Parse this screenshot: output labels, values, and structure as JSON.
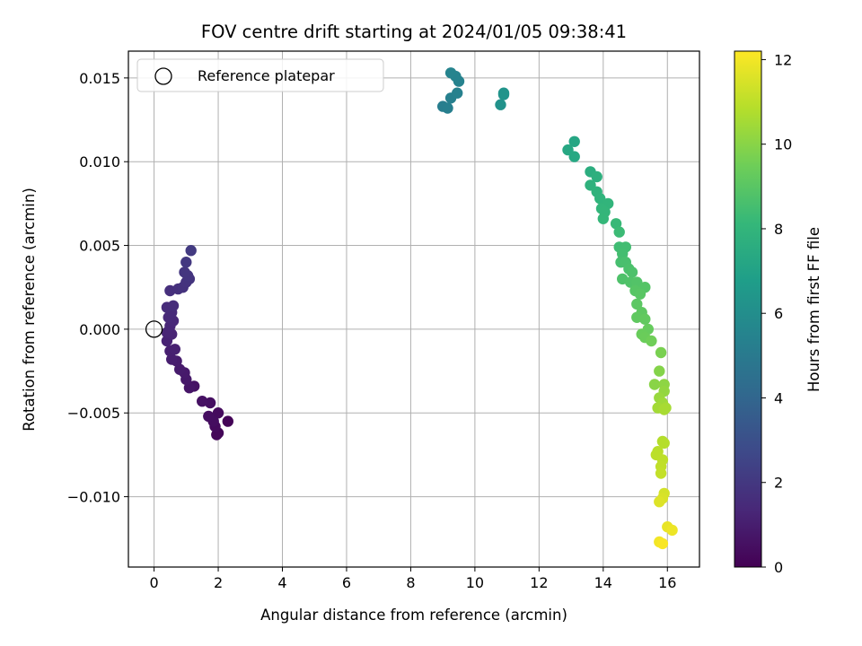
{
  "chart_data": {
    "type": "scatter",
    "title": "FOV centre drift starting at 2024/01/05 09:38:41",
    "xlabel": "Angular distance from reference (arcmin)",
    "ylabel": "Rotation from reference (arcmin)",
    "xlim": [
      -0.8,
      17.0
    ],
    "ylim": [
      -0.0142,
      0.0166
    ],
    "xticks": [
      0,
      2,
      4,
      6,
      8,
      10,
      12,
      14,
      16
    ],
    "xtick_labels": [
      "0",
      "2",
      "4",
      "6",
      "8",
      "10",
      "12",
      "14",
      "16"
    ],
    "yticks": [
      -0.01,
      -0.005,
      0.0,
      0.005,
      0.01,
      0.015
    ],
    "ytick_labels": [
      "−0.010",
      "−0.005",
      "0.000",
      "0.005",
      "0.010",
      "0.015"
    ],
    "grid": true,
    "legend": {
      "placement": "top-left",
      "entries": [
        "Reference platepar"
      ]
    },
    "reference_point": {
      "x": 0.0,
      "y": 0.0
    },
    "colorbar": {
      "label": "Hours from first FF file",
      "colormap": "viridis",
      "range": [
        0,
        12.2
      ],
      "ticks": [
        0,
        2,
        4,
        6,
        8,
        10,
        12
      ],
      "tick_labels": [
        "0",
        "2",
        "4",
        "6",
        "8",
        "10",
        "12"
      ],
      "stops": [
        "#440154",
        "#482878",
        "#3e4989",
        "#31688e",
        "#26828e",
        "#1f9e89",
        "#35b779",
        "#6ece58",
        "#b5de2b",
        "#fde725"
      ]
    },
    "points": [
      [
        2.3,
        -0.0055,
        0.1
      ],
      [
        2.0,
        -0.0062,
        0.15
      ],
      [
        1.95,
        -0.0063,
        0.2
      ],
      [
        1.9,
        -0.0058,
        0.3
      ],
      [
        2.0,
        -0.005,
        0.35
      ],
      [
        1.85,
        -0.0055,
        0.4
      ],
      [
        1.7,
        -0.0052,
        0.45
      ],
      [
        1.75,
        -0.0044,
        0.5
      ],
      [
        1.5,
        -0.0043,
        0.55
      ],
      [
        1.25,
        -0.0034,
        0.6
      ],
      [
        1.1,
        -0.0035,
        0.7
      ],
      [
        1.0,
        -0.003,
        0.8
      ],
      [
        0.95,
        -0.0026,
        0.85
      ],
      [
        0.8,
        -0.0024,
        0.9
      ],
      [
        0.7,
        -0.0019,
        0.95
      ],
      [
        0.55,
        -0.0018,
        1.0
      ],
      [
        0.5,
        -0.0013,
        1.05
      ],
      [
        0.65,
        -0.0012,
        1.1
      ],
      [
        0.4,
        -0.0007,
        1.15
      ],
      [
        0.55,
        -0.0003,
        1.2
      ],
      [
        0.4,
        -0.0002,
        1.25
      ],
      [
        0.5,
        0.0002,
        1.3
      ],
      [
        0.6,
        0.0005,
        1.35
      ],
      [
        0.45,
        0.0007,
        1.4
      ],
      [
        0.55,
        0.001,
        1.45
      ],
      [
        0.4,
        0.0013,
        1.5
      ],
      [
        0.6,
        0.0014,
        1.55
      ],
      [
        0.5,
        0.0023,
        1.65
      ],
      [
        0.75,
        0.0024,
        1.7
      ],
      [
        0.9,
        0.0025,
        1.75
      ],
      [
        1.0,
        0.0028,
        1.8
      ],
      [
        1.1,
        0.003,
        1.85
      ],
      [
        1.05,
        0.0032,
        1.9
      ],
      [
        0.95,
        0.0034,
        1.95
      ],
      [
        1.0,
        0.004,
        2.0
      ],
      [
        1.15,
        0.0047,
        2.1
      ],
      [
        9.0,
        0.0133,
        5.2
      ],
      [
        9.15,
        0.0132,
        5.25
      ],
      [
        9.25,
        0.0138,
        5.3
      ],
      [
        9.45,
        0.0141,
        5.35
      ],
      [
        9.5,
        0.0148,
        5.4
      ],
      [
        9.4,
        0.0151,
        5.45
      ],
      [
        9.25,
        0.0153,
        5.5
      ],
      [
        10.8,
        0.0134,
        6.2
      ],
      [
        10.9,
        0.014,
        6.25
      ],
      [
        10.9,
        0.0141,
        6.3
      ],
      [
        13.1,
        0.0112,
        7.2
      ],
      [
        12.9,
        0.0107,
        7.25
      ],
      [
        13.1,
        0.0103,
        7.3
      ],
      [
        13.6,
        0.0094,
        7.6
      ],
      [
        13.8,
        0.0091,
        7.7
      ],
      [
        13.6,
        0.0086,
        7.8
      ],
      [
        13.8,
        0.0082,
        7.85
      ],
      [
        13.9,
        0.0078,
        7.9
      ],
      [
        14.15,
        0.0075,
        7.95
      ],
      [
        13.95,
        0.0072,
        8.0
      ],
      [
        14.05,
        0.007,
        8.05
      ],
      [
        14.0,
        0.0066,
        8.1
      ],
      [
        14.4,
        0.0063,
        8.2
      ],
      [
        14.5,
        0.0058,
        8.3
      ],
      [
        14.5,
        0.0049,
        8.4
      ],
      [
        14.7,
        0.0049,
        8.45
      ],
      [
        14.6,
        0.0045,
        8.5
      ],
      [
        14.55,
        0.004,
        8.55
      ],
      [
        14.7,
        0.004,
        8.6
      ],
      [
        14.8,
        0.0036,
        8.65
      ],
      [
        14.9,
        0.0034,
        8.7
      ],
      [
        14.6,
        0.003,
        8.75
      ],
      [
        14.85,
        0.0028,
        8.8
      ],
      [
        15.05,
        0.0028,
        8.85
      ],
      [
        15.3,
        0.0025,
        8.9
      ],
      [
        15.0,
        0.0023,
        8.95
      ],
      [
        15.15,
        0.0021,
        9.0
      ],
      [
        15.05,
        0.0015,
        9.05
      ],
      [
        15.2,
        0.001,
        9.1
      ],
      [
        15.05,
        0.0007,
        9.15
      ],
      [
        15.3,
        0.0006,
        9.2
      ],
      [
        15.4,
        0.0,
        9.3
      ],
      [
        15.2,
        -0.0003,
        9.35
      ],
      [
        15.3,
        -0.0005,
        9.4
      ],
      [
        15.5,
        -0.0007,
        9.5
      ],
      [
        15.8,
        -0.0014,
        9.7
      ],
      [
        15.75,
        -0.0025,
        9.9
      ],
      [
        15.6,
        -0.0033,
        10.0
      ],
      [
        15.9,
        -0.0033,
        10.1
      ],
      [
        15.9,
        -0.0037,
        10.2
      ],
      [
        15.75,
        -0.0041,
        10.3
      ],
      [
        15.85,
        -0.0044,
        10.4
      ],
      [
        15.7,
        -0.0047,
        10.5
      ],
      [
        15.95,
        -0.0047,
        10.55
      ],
      [
        15.9,
        -0.0048,
        10.6
      ],
      [
        15.85,
        -0.0067,
        10.8
      ],
      [
        15.9,
        -0.0068,
        10.85
      ],
      [
        15.7,
        -0.0073,
        10.9
      ],
      [
        15.65,
        -0.0075,
        10.95
      ],
      [
        15.85,
        -0.0078,
        11.0
      ],
      [
        15.8,
        -0.0082,
        11.05
      ],
      [
        15.8,
        -0.0086,
        11.1
      ],
      [
        15.9,
        -0.0098,
        11.4
      ],
      [
        15.85,
        -0.0101,
        11.5
      ],
      [
        15.75,
        -0.0103,
        11.6
      ],
      [
        16.0,
        -0.0118,
        11.8
      ],
      [
        16.15,
        -0.012,
        11.9
      ],
      [
        15.75,
        -0.0127,
        12.0
      ],
      [
        15.85,
        -0.0128,
        12.1
      ]
    ]
  }
}
